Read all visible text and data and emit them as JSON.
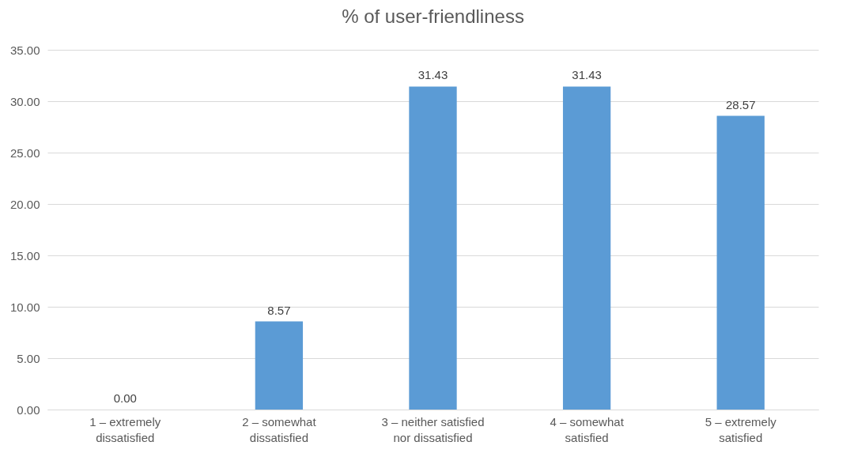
{
  "chart_data": {
    "type": "bar",
    "title": "% of user-friendliness",
    "categories": [
      "1 – extremely dissatisfied",
      "2 – somewhat dissatisfied",
      "3 – neither satisfied nor dissatisfied",
      "4 – somewhat satisfied",
      "5 – extremely satisfied"
    ],
    "values": [
      0,
      8.57,
      31.43,
      31.43,
      28.57
    ],
    "value_labels": [
      "0.00",
      "8.57",
      "31.43",
      "31.43",
      "28.57"
    ],
    "color": "#5b9bd5",
    "ylim": [
      0,
      35
    ],
    "yticks": [
      {
        "value": 0,
        "label": "0.00"
      },
      {
        "value": 5,
        "label": "5.00"
      },
      {
        "value": 10,
        "label": "10.00"
      },
      {
        "value": 15,
        "label": "15.00"
      },
      {
        "value": 20,
        "label": "20.00"
      },
      {
        "value": 25,
        "label": "25.00"
      },
      {
        "value": 30,
        "label": "30.00"
      },
      {
        "value": 35,
        "label": "35.00"
      }
    ],
    "grid": "y"
  }
}
